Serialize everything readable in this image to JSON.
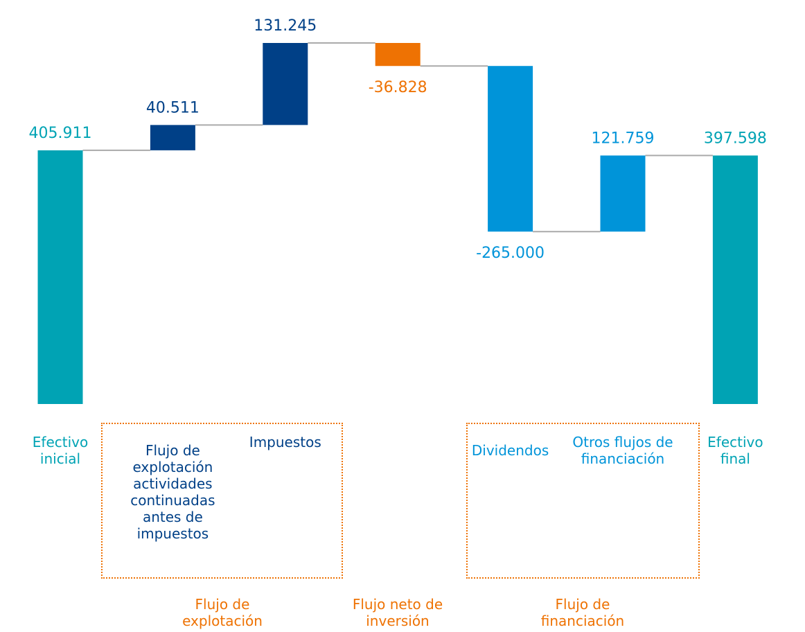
{
  "chart_data": {
    "type": "waterfall",
    "categories": [
      "Efectivo inicial",
      "Flujo de explotación actividades continuadas antes de impuestos",
      "Impuestos",
      null,
      "Dividendos",
      "Otros flujos de financiación",
      "Efectivo final"
    ],
    "values": [
      405.911,
      40.511,
      131.245,
      -36.828,
      -265.0,
      121.759,
      397.598
    ],
    "value_labels": [
      "405.911",
      "40.511",
      "131.245",
      "-36.828",
      "-265.000",
      "121.759",
      "397.598"
    ],
    "colors": [
      "#00a3b4",
      "#004087",
      "#004087",
      "#ee7203",
      "#0094d9",
      "#0094d9",
      "#00a3b4"
    ],
    "groups": [
      "Flujo de explotación",
      "Flujo neto de inversión",
      "Flujo de financiación"
    ]
  }
}
